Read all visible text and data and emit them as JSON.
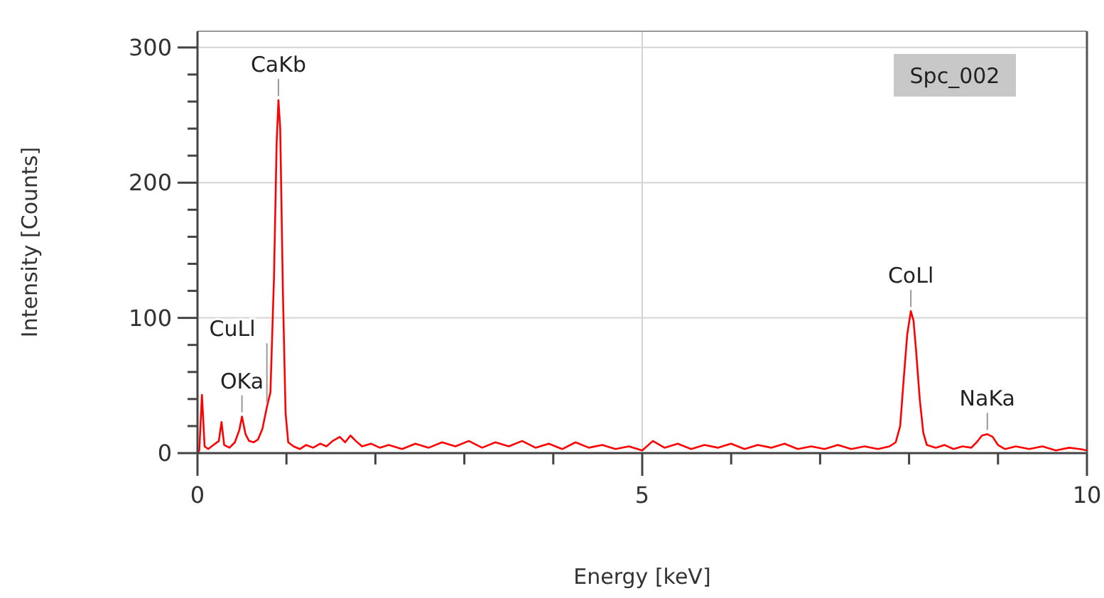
{
  "chart_data": {
    "type": "line",
    "xlabel": "Energy [keV]",
    "ylabel": "Intensity [Counts]",
    "x": [
      0,
      0.02,
      0.05,
      0.08,
      0.12,
      0.18,
      0.24,
      0.27,
      0.3,
      0.36,
      0.42,
      0.47,
      0.5,
      0.54,
      0.58,
      0.63,
      0.68,
      0.73,
      0.78,
      0.82,
      0.86,
      0.89,
      0.91,
      0.93,
      0.96,
      0.99,
      1.02,
      1.08,
      1.15,
      1.22,
      1.3,
      1.38,
      1.45,
      1.52,
      1.6,
      1.66,
      1.72,
      1.78,
      1.85,
      1.95,
      2.05,
      2.15,
      2.3,
      2.45,
      2.6,
      2.75,
      2.9,
      3.05,
      3.2,
      3.35,
      3.5,
      3.65,
      3.8,
      3.95,
      4.1,
      4.25,
      4.4,
      4.55,
      4.7,
      4.85,
      5,
      5.12,
      5.25,
      5.4,
      5.55,
      5.7,
      5.85,
      6,
      6.15,
      6.3,
      6.45,
      6.6,
      6.75,
      6.9,
      7.05,
      7.2,
      7.35,
      7.5,
      7.65,
      7.78,
      7.85,
      7.9,
      7.94,
      7.98,
      8.02,
      8.05,
      8.08,
      8.12,
      8.16,
      8.2,
      8.3,
      8.4,
      8.5,
      8.6,
      8.7,
      8.76,
      8.82,
      8.88,
      8.94,
      9,
      9.08,
      9.2,
      9.35,
      9.5,
      9.65,
      9.8,
      9.92,
      10
    ],
    "series": [
      {
        "color": "#ff0000",
        "values": [
          0,
          2,
          43,
          5,
          3,
          6,
          9,
          23,
          6,
          4,
          8,
          17,
          27,
          14,
          9,
          8,
          10,
          18,
          34,
          45,
          130,
          230,
          261,
          240,
          120,
          30,
          8,
          5,
          3,
          6,
          4,
          7,
          5,
          9,
          12,
          8,
          13,
          9,
          5,
          7,
          4,
          6,
          3,
          7,
          4,
          8,
          5,
          9,
          4,
          8,
          5,
          9,
          4,
          7,
          3,
          8,
          4,
          6,
          3,
          5,
          2,
          9,
          4,
          7,
          3,
          6,
          4,
          7,
          3,
          6,
          4,
          7,
          3,
          5,
          3,
          6,
          3,
          5,
          3,
          5,
          8,
          20,
          55,
          88,
          105,
          98,
          75,
          40,
          15,
          6,
          4,
          6,
          3,
          5,
          4,
          8,
          13,
          14,
          12,
          6,
          3,
          5,
          3,
          5,
          2,
          4,
          3,
          2
        ]
      }
    ],
    "xlim": [
      0,
      10
    ],
    "xticks": [
      0,
      {
        "value": 1,
        "label": null
      },
      {
        "value": 2,
        "label": null
      },
      {
        "value": 3,
        "label": null
      },
      {
        "value": 4,
        "label": null
      },
      5,
      {
        "value": 6,
        "label": null
      },
      {
        "value": 7,
        "label": null
      },
      {
        "value": 8,
        "label": null
      },
      {
        "value": 9,
        "label": null
      },
      10
    ],
    "ylim": [
      0,
      312
    ],
    "yticks": [
      0,
      {
        "value": 20,
        "label": null
      },
      {
        "value": 40,
        "label": null
      },
      {
        "value": 60,
        "label": null
      },
      {
        "value": 80,
        "label": null
      },
      100,
      {
        "value": 120,
        "label": null
      },
      {
        "value": 140,
        "label": null
      },
      {
        "value": 160,
        "label": null
      },
      {
        "value": 180,
        "label": null
      },
      200,
      {
        "value": 220,
        "label": null
      },
      {
        "value": 240,
        "label": null
      },
      {
        "value": 260,
        "label": null
      },
      {
        "value": 280,
        "label": null
      },
      300
    ],
    "grid": true,
    "marker": "none",
    "line_style": "solid",
    "annotations": [
      {
        "text": "CaKb",
        "x": 0.91,
        "y": 261
      },
      {
        "text": "CuLl",
        "x": 0.78,
        "y": 34
      },
      {
        "text": "OKa",
        "x": 0.5,
        "y": 27
      },
      {
        "text": "CoLl",
        "x": 8.02,
        "y": 105
      },
      {
        "text": "NaKa",
        "x": 8.88,
        "y": 14
      },
      "Spc_002"
    ]
  }
}
